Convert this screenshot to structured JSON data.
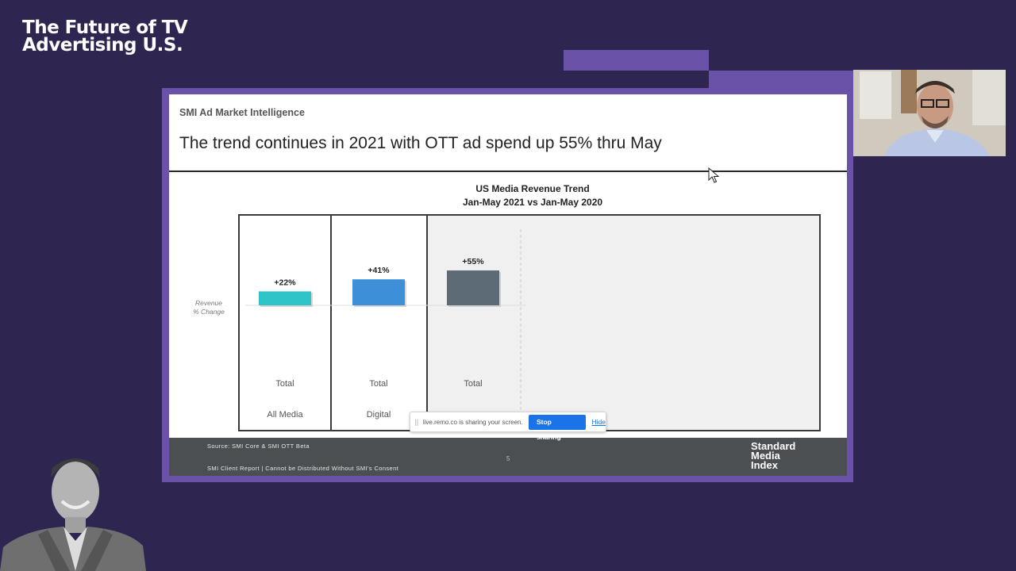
{
  "event": {
    "title": "The Future of TV\nAdvertising U.S."
  },
  "slide": {
    "brand": "SMI Ad Market Intelligence",
    "heading": "The trend continues in 2021 with OTT ad spend up 55% thru May",
    "page_number": "5",
    "footer": {
      "source": "Source: SMI Core & SMI OTT Beta",
      "notice": "SMI Client Report | Cannot be Distributed Without SMI's Consent",
      "logo_text": "Standard\nMedia\nIndex"
    }
  },
  "chart_data": {
    "type": "bar",
    "title": "US Media Revenue Trend",
    "subtitle": "Jan-May 2021 vs Jan-May 2020",
    "ylabel": "Revenue\n% Change",
    "groups": [
      "All Media",
      "Digital",
      ""
    ],
    "categories": [
      "Total",
      "Total",
      "Total"
    ],
    "values": [
      22,
      41,
      55
    ],
    "data_labels": [
      "+22%",
      "+41%",
      "+55%"
    ],
    "colors": [
      "#2ec4c8",
      "#3d8fd8",
      "#5d6b77"
    ]
  },
  "screen_share": {
    "message": "live.remo.co is sharing your screen.",
    "stop_label": "Stop sharing",
    "hide_label": "Hide",
    "grip_icon": "grip-icon"
  }
}
